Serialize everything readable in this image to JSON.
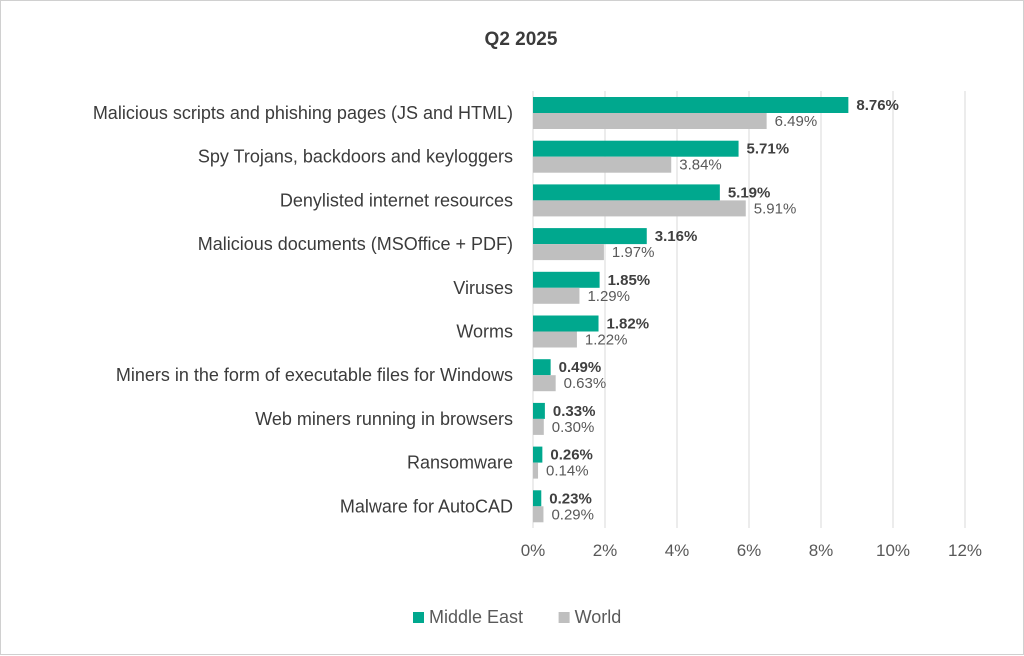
{
  "chart_data": {
    "type": "bar",
    "orientation": "horizontal",
    "title": "Q2 2025",
    "categories": [
      "Malicious scripts and phishing pages (JS and HTML)",
      "Spy Trojans, backdoors and keyloggers",
      "Denylisted internet resources",
      "Malicious documents (MSOffice + PDF)",
      "Viruses",
      "Worms",
      "Miners in the form of executable files for Windows",
      "Web miners running in browsers",
      "Ransomware",
      "Malware for AutoCAD"
    ],
    "series": [
      {
        "name": "Middle East",
        "color": "#00a88e",
        "values": [
          8.76,
          5.71,
          5.19,
          3.16,
          1.85,
          1.82,
          0.49,
          0.33,
          0.26,
          0.23
        ],
        "labels": [
          "8.76%",
          "5.71%",
          "5.19%",
          "3.16%",
          "1.85%",
          "1.82%",
          "0.49%",
          "0.33%",
          "0.26%",
          "0.23%"
        ]
      },
      {
        "name": "World",
        "color": "#bfbfbf",
        "values": [
          6.49,
          3.84,
          5.91,
          1.97,
          1.29,
          1.22,
          0.63,
          0.3,
          0.14,
          0.29
        ],
        "labels": [
          "6.49%",
          "3.84%",
          "5.91%",
          "1.97%",
          "1.29%",
          "1.22%",
          "0.63%",
          "0.30%",
          "0.14%",
          "0.29%"
        ]
      }
    ],
    "xlim": [
      0,
      12
    ],
    "xticks": [
      0,
      2,
      4,
      6,
      8,
      10,
      12
    ],
    "xtick_labels": [
      "0%",
      "2%",
      "4%",
      "6%",
      "8%",
      "10%",
      "12%"
    ],
    "grid": "vertical",
    "legend": "bottom"
  }
}
